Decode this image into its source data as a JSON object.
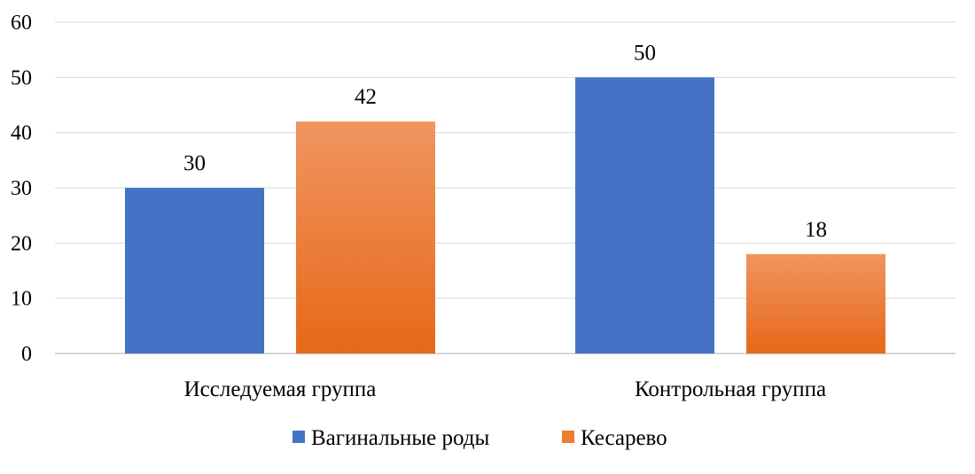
{
  "chart_data": {
    "type": "bar",
    "categories": [
      "Исследуемая группа",
      "Контрольная группа"
    ],
    "series": [
      {
        "name": "Вагинальные роды",
        "values": [
          30,
          50
        ],
        "color": "#4472C4"
      },
      {
        "name": "Кесарево",
        "values": [
          42,
          18
        ],
        "color": "#ED7D31",
        "gradient": [
          "#F09560",
          "#E76818"
        ]
      }
    ],
    "y_ticks": [
      0,
      10,
      20,
      30,
      40,
      50,
      60
    ],
    "ylim": [
      0,
      60
    ],
    "grid": true,
    "legend": "bottom",
    "data_labels": true
  }
}
